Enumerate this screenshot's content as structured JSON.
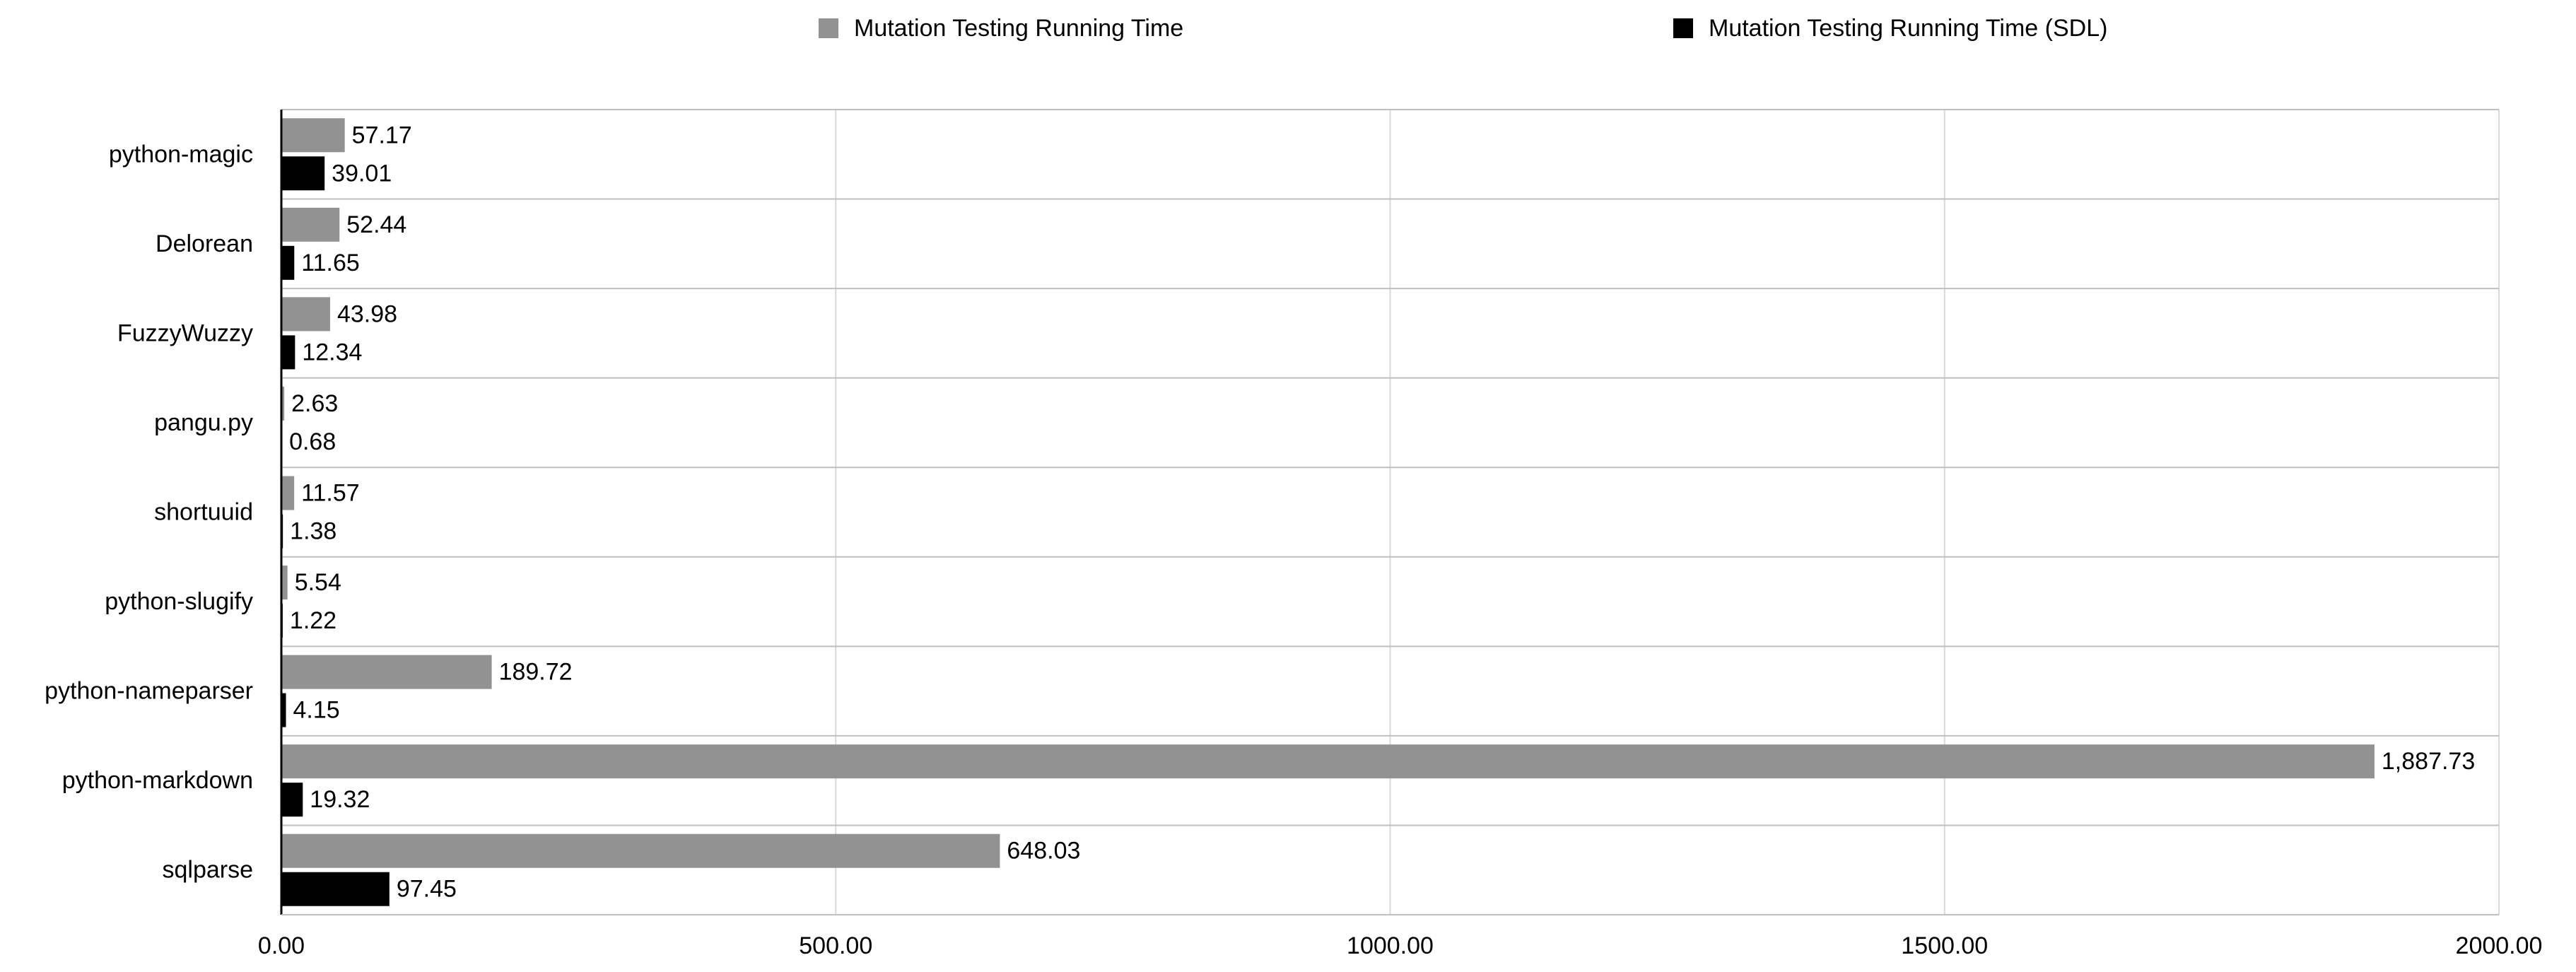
{
  "chart_data": {
    "type": "bar",
    "orientation": "horizontal",
    "title": "",
    "xlabel": "",
    "ylabel": "",
    "categories": [
      "python-magic",
      "Delorean",
      "FuzzyWuzzy",
      "pangu.py",
      "shortuuid",
      "python-slugify",
      "python-nameparser",
      "python-markdown",
      "sqlparse"
    ],
    "series": [
      {
        "name": "Mutation Testing Running Time",
        "color": "#929292",
        "values": [
          57.17,
          52.44,
          43.98,
          2.63,
          11.57,
          5.54,
          189.72,
          1887.73,
          648.03
        ],
        "labels": [
          "57.17",
          "52.44",
          "43.98",
          "2.63",
          "11.57",
          "5.54",
          "189.72",
          "1,887.73",
          "648.03"
        ]
      },
      {
        "name": "Mutation Testing Running Time (SDL)",
        "color": "#000000",
        "values": [
          39.01,
          11.65,
          12.34,
          0.68,
          1.38,
          1.22,
          4.15,
          19.32,
          97.45
        ],
        "labels": [
          "39.01",
          "11.65",
          "12.34",
          "0.68",
          "1.38",
          "1.22",
          "4.15",
          "19.32",
          "97.45"
        ]
      }
    ],
    "xlim": [
      0,
      2000
    ],
    "xticks": [
      0,
      500,
      1000,
      1500,
      2000
    ],
    "xtick_labels": [
      "0.00",
      "500.00",
      "1000.00",
      "1500.00",
      "2000.00"
    ],
    "grid": true,
    "legend_position": "top"
  }
}
